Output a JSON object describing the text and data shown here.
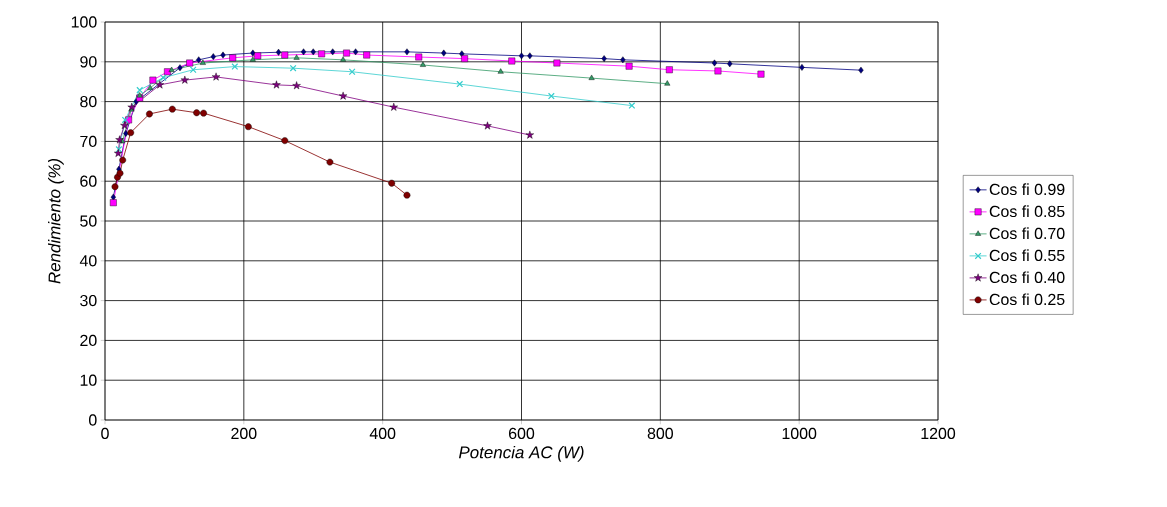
{
  "chart_data": {
    "type": "line",
    "xlabel": "Potencia AC  (W)",
    "ylabel": "Rendimiento (%)",
    "xlim": [
      0,
      1200
    ],
    "xticks": [
      0,
      200,
      400,
      600,
      800,
      1000,
      1200
    ],
    "ylim": [
      0,
      100
    ],
    "yticks": [
      0,
      10,
      20,
      30,
      40,
      50,
      60,
      70,
      80,
      90,
      100
    ],
    "grid": true,
    "legend": "right",
    "series": [
      {
        "name": "Cos fi 0.99",
        "color": "#000080",
        "marker": "diamond",
        "x": [
          12,
          20,
          30,
          45,
          70,
          108,
          135,
          156,
          170,
          213,
          250,
          286,
          300,
          328,
          361,
          435,
          488,
          514,
          600,
          612,
          719,
          746,
          878,
          900,
          1004,
          1089
        ],
        "values": [
          56,
          63,
          72,
          80,
          null,
          88.5,
          90.5,
          91.3,
          91.7,
          92.2,
          92.4,
          92.5,
          92.5,
          92.5,
          92.5,
          92.5,
          92.2,
          92,
          91.5,
          91.5,
          90.8,
          90.5,
          89.7,
          89.5,
          88.6,
          87.9
        ]
      },
      {
        "name": "Cos fi 0.85",
        "color": "#ff00ff",
        "marker": "square",
        "x": [
          12,
          25,
          34,
          50,
          69,
          90,
          122,
          184,
          220,
          259,
          312,
          348,
          377,
          452,
          518,
          586,
          651,
          755,
          813,
          883,
          945
        ],
        "values": [
          54.6,
          null,
          75.4,
          80.9,
          85.4,
          87.5,
          89.7,
          91,
          91.5,
          91.7,
          92,
          92.2,
          91.7,
          91.2,
          90.8,
          90.2,
          89.7,
          88.9,
          88,
          87.7,
          86.9
        ]
      },
      {
        "name": "Cos fi 0.70",
        "color": "#339966",
        "marker": "triangle",
        "x": [
          25,
          38,
          50,
          65,
          96,
          141,
          213,
          276,
          343,
          458,
          570,
          701,
          810
        ],
        "values": [
          70,
          78,
          81.5,
          83.4,
          87.9,
          89.7,
          90.5,
          91,
          90.5,
          89.2,
          87.5,
          85.9,
          84.5
        ]
      },
      {
        "name": "Cos fi 0.55",
        "color": "#33cccc",
        "marker": "cross",
        "x": [
          20,
          29,
          38,
          50,
          84,
          127,
          187,
          271,
          356,
          511,
          643,
          759
        ],
        "values": [
          68,
          75.4,
          null,
          82.9,
          86,
          88,
          88.8,
          88.4,
          87.5,
          84.4,
          81.4,
          79
        ]
      },
      {
        "name": "Cos fi 0.40",
        "color": "#800080",
        "marker": "star",
        "x": [
          19,
          21,
          28,
          38.5,
          79,
          115,
          160,
          247,
          276,
          343,
          416,
          551,
          612
        ],
        "values": [
          67,
          70.4,
          74,
          78.6,
          84.2,
          85.4,
          86.2,
          84.2,
          84,
          81.4,
          78.6,
          73.9,
          71.6
        ]
      },
      {
        "name": "Cos fi 0.25",
        "color": "#800000",
        "marker": "circle",
        "x": [
          14.4,
          18,
          21.6,
          25.5,
          37,
          64,
          97,
          132,
          142,
          206.5,
          259,
          324,
          413,
          435
        ],
        "values": [
          58.6,
          61,
          62,
          65.3,
          72.2,
          76.9,
          78.1,
          77.2,
          77.1,
          73.7,
          70.2,
          64.8,
          59.5,
          56.5
        ]
      }
    ]
  }
}
